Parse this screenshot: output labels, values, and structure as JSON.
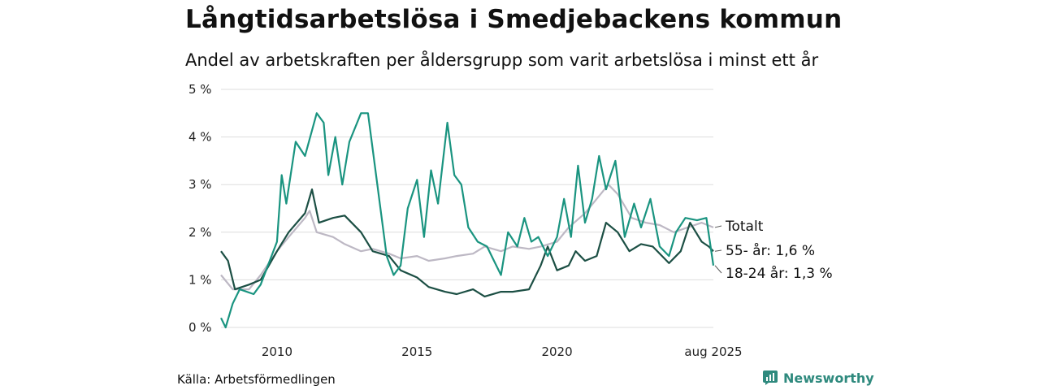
{
  "header": {
    "title": "Långtidsarbetslösa i Smedjebackens kommun",
    "subtitle": "Andel av arbetskraften per åldersgrupp som varit arbetslösa i minst ett år"
  },
  "footer": {
    "source": "Källa: Arbetsförmedlingen",
    "brand": "Newsworthy",
    "brand_icon": "newsworthy-logo-icon",
    "brand_color": "#2f8a7e"
  },
  "chart_data": {
    "type": "line",
    "title": "Långtidsarbetslösa i Smedjebackens kommun",
    "subtitle": "Andel av arbetskraften per åldersgrupp som varit arbetslösa i minst ett år",
    "xlabel": "",
    "ylabel": "",
    "ylim": [
      0,
      5
    ],
    "yticks": [
      0,
      1,
      2,
      3,
      4,
      5
    ],
    "ytick_labels": [
      "0 %",
      "1 %",
      "2 %",
      "3 %",
      "4 %",
      "5 %"
    ],
    "xlim": [
      "2008-01",
      "2025-08"
    ],
    "xticks": [
      "2010-01",
      "2015-01",
      "2020-01",
      "2025-08"
    ],
    "xtick_labels": [
      "2010",
      "2015",
      "2020",
      "aug 2025"
    ],
    "grid": "horizontal",
    "legend": "direct labels at line ends (right)",
    "series": [
      {
        "name": "Totalt",
        "end_label": "Totalt",
        "color": "#bdb8c4",
        "points": [
          [
            "2008-01",
            1.1
          ],
          [
            "2008-06",
            0.8
          ],
          [
            "2009-01",
            0.8
          ],
          [
            "2009-06",
            1.1
          ],
          [
            "2010-01",
            1.6
          ],
          [
            "2010-06",
            1.9
          ],
          [
            "2011-01",
            2.3
          ],
          [
            "2011-03",
            2.45
          ],
          [
            "2011-06",
            2.0
          ],
          [
            "2012-01",
            1.9
          ],
          [
            "2012-06",
            1.75
          ],
          [
            "2013-01",
            1.6
          ],
          [
            "2013-06",
            1.65
          ],
          [
            "2014-01",
            1.55
          ],
          [
            "2014-06",
            1.45
          ],
          [
            "2015-01",
            1.5
          ],
          [
            "2015-06",
            1.4
          ],
          [
            "2016-01",
            1.45
          ],
          [
            "2016-06",
            1.5
          ],
          [
            "2017-01",
            1.55
          ],
          [
            "2017-06",
            1.7
          ],
          [
            "2018-01",
            1.6
          ],
          [
            "2018-06",
            1.7
          ],
          [
            "2019-01",
            1.65
          ],
          [
            "2019-06",
            1.7
          ],
          [
            "2020-01",
            1.8
          ],
          [
            "2020-06",
            2.1
          ],
          [
            "2021-01",
            2.4
          ],
          [
            "2021-06",
            2.7
          ],
          [
            "2021-11",
            3.0
          ],
          [
            "2022-03",
            2.8
          ],
          [
            "2022-09",
            2.3
          ],
          [
            "2023-03",
            2.2
          ],
          [
            "2023-09",
            2.15
          ],
          [
            "2024-03",
            2.0
          ],
          [
            "2024-09",
            2.1
          ],
          [
            "2025-03",
            2.2
          ],
          [
            "2025-08",
            2.1
          ]
        ]
      },
      {
        "name": "55- år",
        "end_label": "55- år: 1,6 %",
        "color": "#1c4f44",
        "points": [
          [
            "2008-01",
            1.6
          ],
          [
            "2008-04",
            1.4
          ],
          [
            "2008-07",
            0.8
          ],
          [
            "2009-01",
            0.9
          ],
          [
            "2009-06",
            1.0
          ],
          [
            "2010-01",
            1.6
          ],
          [
            "2010-06",
            2.0
          ],
          [
            "2011-01",
            2.4
          ],
          [
            "2011-04",
            2.9
          ],
          [
            "2011-07",
            2.2
          ],
          [
            "2012-01",
            2.3
          ],
          [
            "2012-06",
            2.35
          ],
          [
            "2013-01",
            2.0
          ],
          [
            "2013-06",
            1.6
          ],
          [
            "2014-01",
            1.5
          ],
          [
            "2014-06",
            1.2
          ],
          [
            "2015-01",
            1.05
          ],
          [
            "2015-06",
            0.85
          ],
          [
            "2016-01",
            0.75
          ],
          [
            "2016-06",
            0.7
          ],
          [
            "2017-01",
            0.8
          ],
          [
            "2017-06",
            0.65
          ],
          [
            "2018-01",
            0.75
          ],
          [
            "2018-06",
            0.75
          ],
          [
            "2019-01",
            0.8
          ],
          [
            "2019-06",
            1.3
          ],
          [
            "2019-09",
            1.7
          ],
          [
            "2020-01",
            1.2
          ],
          [
            "2020-06",
            1.3
          ],
          [
            "2020-09",
            1.6
          ],
          [
            "2021-01",
            1.4
          ],
          [
            "2021-06",
            1.5
          ],
          [
            "2021-10",
            2.2
          ],
          [
            "2022-03",
            2.0
          ],
          [
            "2022-08",
            1.6
          ],
          [
            "2023-01",
            1.75
          ],
          [
            "2023-06",
            1.7
          ],
          [
            "2024-01",
            1.35
          ],
          [
            "2024-06",
            1.6
          ],
          [
            "2024-10",
            2.2
          ],
          [
            "2025-03",
            1.8
          ],
          [
            "2025-06",
            1.7
          ],
          [
            "2025-08",
            1.6
          ]
        ]
      },
      {
        "name": "18-24 år",
        "end_label": "18-24 år: 1,3 %",
        "color": "#1a9480",
        "points": [
          [
            "2008-01",
            0.2
          ],
          [
            "2008-03",
            0.0
          ],
          [
            "2008-06",
            0.5
          ],
          [
            "2008-09",
            0.8
          ],
          [
            "2009-03",
            0.7
          ],
          [
            "2009-06",
            0.9
          ],
          [
            "2010-01",
            1.8
          ],
          [
            "2010-03",
            3.2
          ],
          [
            "2010-05",
            2.6
          ],
          [
            "2010-09",
            3.9
          ],
          [
            "2011-01",
            3.6
          ],
          [
            "2011-06",
            4.5
          ],
          [
            "2011-09",
            4.3
          ],
          [
            "2011-11",
            3.2
          ],
          [
            "2012-02",
            4.0
          ],
          [
            "2012-05",
            3.0
          ],
          [
            "2012-08",
            3.9
          ],
          [
            "2013-01",
            4.5
          ],
          [
            "2013-04",
            4.5
          ],
          [
            "2013-08",
            3.0
          ],
          [
            "2013-12",
            1.5
          ],
          [
            "2014-03",
            1.1
          ],
          [
            "2014-06",
            1.3
          ],
          [
            "2014-09",
            2.5
          ],
          [
            "2015-01",
            3.1
          ],
          [
            "2015-04",
            1.9
          ],
          [
            "2015-07",
            3.3
          ],
          [
            "2015-10",
            2.6
          ],
          [
            "2016-02",
            4.3
          ],
          [
            "2016-05",
            3.2
          ],
          [
            "2016-08",
            3.0
          ],
          [
            "2016-11",
            2.1
          ],
          [
            "2017-03",
            1.8
          ],
          [
            "2017-07",
            1.7
          ],
          [
            "2017-10",
            1.4
          ],
          [
            "2018-01",
            1.1
          ],
          [
            "2018-04",
            2.0
          ],
          [
            "2018-08",
            1.7
          ],
          [
            "2018-11",
            2.3
          ],
          [
            "2019-02",
            1.8
          ],
          [
            "2019-05",
            1.9
          ],
          [
            "2019-09",
            1.5
          ],
          [
            "2020-01",
            1.9
          ],
          [
            "2020-04",
            2.7
          ],
          [
            "2020-07",
            1.9
          ],
          [
            "2020-10",
            3.4
          ],
          [
            "2021-01",
            2.2
          ],
          [
            "2021-04",
            2.7
          ],
          [
            "2021-07",
            3.6
          ],
          [
            "2021-10",
            2.9
          ],
          [
            "2022-02",
            3.5
          ],
          [
            "2022-06",
            1.9
          ],
          [
            "2022-10",
            2.6
          ],
          [
            "2023-01",
            2.1
          ],
          [
            "2023-05",
            2.7
          ],
          [
            "2023-09",
            1.7
          ],
          [
            "2024-01",
            1.5
          ],
          [
            "2024-04",
            2.0
          ],
          [
            "2024-08",
            2.3
          ],
          [
            "2025-01",
            2.25
          ],
          [
            "2025-05",
            2.3
          ],
          [
            "2025-08",
            1.3
          ]
        ]
      }
    ]
  }
}
